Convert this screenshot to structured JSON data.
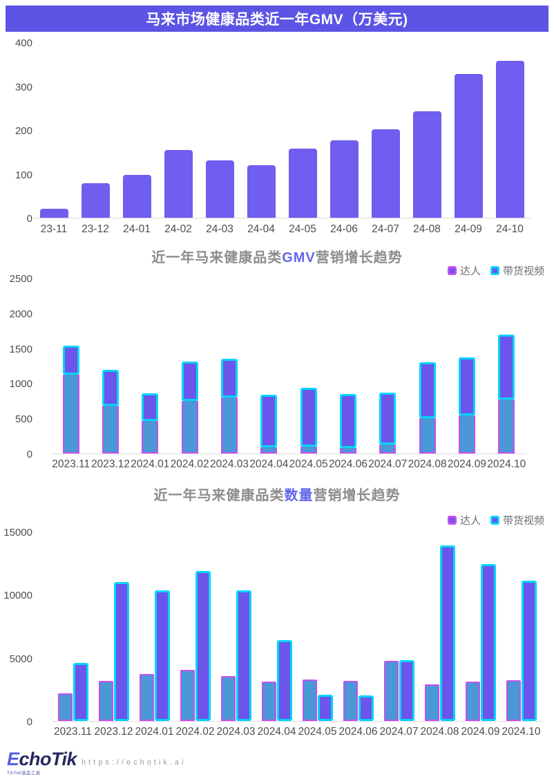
{
  "header": {
    "title": "马来市场健康品类近一年GMV（万美元)"
  },
  "colors": {
    "header_bg": "#5b54e4",
    "bar_purple": "#6f5ef0",
    "daren_fill": "#4a98d5",
    "daren_border": "#c94df0",
    "video_fill": "#6c55ea",
    "video_border": "#00d4fb",
    "title_highlight": "#6366e9",
    "axis_line": "#dcdcdc"
  },
  "chart_data": [
    {
      "type": "bar",
      "title": "马来市场健康品类近一年GMV（万美元)",
      "categories": [
        "23-11",
        "23-12",
        "24-01",
        "24-02",
        "24-03",
        "24-04",
        "24-05",
        "24-06",
        "24-07",
        "24-08",
        "24-09",
        "24-10"
      ],
      "values": [
        20,
        78,
        97,
        155,
        130,
        120,
        157,
        176,
        201,
        242,
        328,
        358
      ],
      "yticks": [
        400,
        300,
        200,
        100,
        0
      ],
      "ylim": [
        0,
        400
      ],
      "xlabel": "",
      "ylabel": "",
      "grid": false,
      "legend_position": "none"
    },
    {
      "type": "bar",
      "subtype": "stacked",
      "title_prefix": "近一年马来健康品类",
      "title_highlight": "GMV",
      "title_suffix": "营销增长趋势",
      "categories": [
        "2023.11",
        "2023.12",
        "2024.01",
        "2024.02",
        "2024.03",
        "2024.04",
        "2024.05",
        "2024.06",
        "2024.07",
        "2024.08",
        "2024.09",
        "2024.10"
      ],
      "series": [
        {
          "name": "达人",
          "values": [
            1120,
            680,
            460,
            750,
            800,
            90,
            100,
            75,
            130,
            500,
            545,
            770
          ]
        },
        {
          "name": "带货视频",
          "values": [
            410,
            510,
            395,
            565,
            555,
            745,
            835,
            770,
            735,
            800,
            830,
            930
          ]
        }
      ],
      "stack_totals": [
        1530,
        1190,
        855,
        1315,
        1355,
        835,
        935,
        845,
        865,
        1300,
        1375,
        1700
      ],
      "yticks": [
        2500,
        2000,
        1500,
        1000,
        500,
        0
      ],
      "ylim": [
        0,
        2500
      ],
      "grid": false,
      "legend_position": "top-right"
    },
    {
      "type": "bar",
      "subtype": "grouped",
      "title_prefix": "近一年马来健康品类",
      "title_highlight": "数量",
      "title_suffix": "营销增长趋势",
      "categories": [
        "2023.11",
        "2023.12",
        "2024.01",
        "2024.02",
        "2024.03",
        "2024.04",
        "2024.05",
        "2024.06",
        "2024.07",
        "2024.08",
        "2024.09",
        "2024.10"
      ],
      "series": [
        {
          "name": "达人",
          "values": [
            2200,
            3200,
            3700,
            4050,
            3550,
            3100,
            3300,
            3200,
            4750,
            2900,
            3100,
            3250
          ]
        },
        {
          "name": "带货视频",
          "values": [
            4600,
            11000,
            10350,
            11900,
            10350,
            6400,
            2100,
            2050,
            4800,
            13900,
            12450,
            11100
          ]
        }
      ],
      "yticks": [
        15000,
        10000,
        5000,
        0
      ],
      "ylim": [
        0,
        15000
      ],
      "grid": false,
      "legend_position": "top-right"
    }
  ],
  "footer": {
    "logo": "EchoTik",
    "logo_first_letter": "E",
    "logo_rest": "choTik",
    "logo_sub": "TikTok选品工具",
    "url": "https://echotik.ai"
  }
}
